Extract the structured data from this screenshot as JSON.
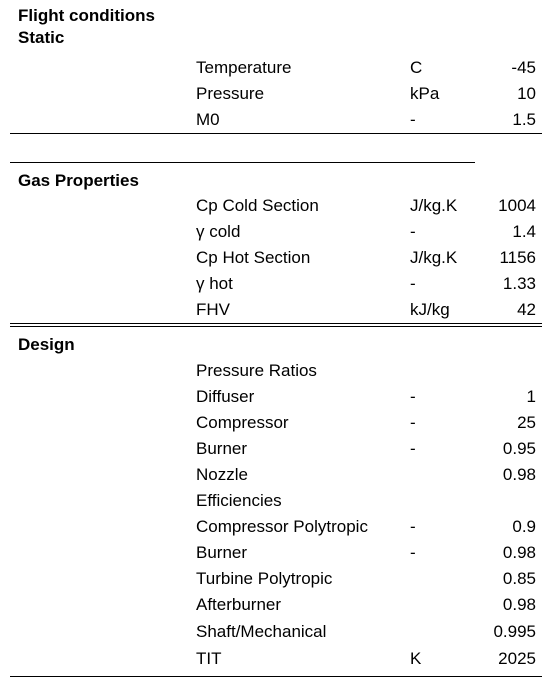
{
  "flight": {
    "title": "Flight conditions",
    "subtitle": "Static",
    "rows": [
      {
        "label": "Temperature",
        "unit": "C",
        "value": "-45"
      },
      {
        "label": "Pressure",
        "unit": "kPa",
        "value": "10"
      },
      {
        "label": "M0",
        "unit": "-",
        "value": "1.5"
      }
    ]
  },
  "gas": {
    "title": "Gas Properties",
    "rows": [
      {
        "label": "Cp Cold Section",
        "unit": "J/kg.K",
        "value": "1004"
      },
      {
        "label": "γ cold",
        "unit": "-",
        "value": "1.4"
      },
      {
        "label": "Cp Hot Section",
        "unit": "J/kg.K",
        "value": "1156"
      },
      {
        "label": "γ hot",
        "unit": "-",
        "value": "1.33"
      },
      {
        "label": "FHV",
        "unit": "kJ/kg",
        "value": "42"
      }
    ]
  },
  "design": {
    "title": "Design",
    "rows": [
      {
        "label": "Pressure Ratios",
        "unit": "",
        "value": ""
      },
      {
        "label": "Diffuser",
        "unit": "-",
        "value": "1"
      },
      {
        "label": "Compressor",
        "unit": "-",
        "value": "25"
      },
      {
        "label": "Burner",
        "unit": "-",
        "value": "0.95"
      },
      {
        "label": "Nozzle",
        "unit": "",
        "value": "0.98"
      },
      {
        "label": "Efficiencies",
        "unit": "",
        "value": ""
      },
      {
        "label": "Compressor Polytropic",
        "unit": "-",
        "value": "0.9"
      },
      {
        "label": "Burner",
        "unit": "-",
        "value": "0.98"
      },
      {
        "label": "Turbine Polytropic",
        "unit": "",
        "value": "0.85"
      },
      {
        "label": "Afterburner",
        "unit": "",
        "value": "0.98"
      },
      {
        "label": "Shaft/Mechanical",
        "unit": "",
        "value": "0.995"
      },
      {
        "label": "TIT",
        "unit": "K",
        "value": "2025"
      }
    ]
  }
}
